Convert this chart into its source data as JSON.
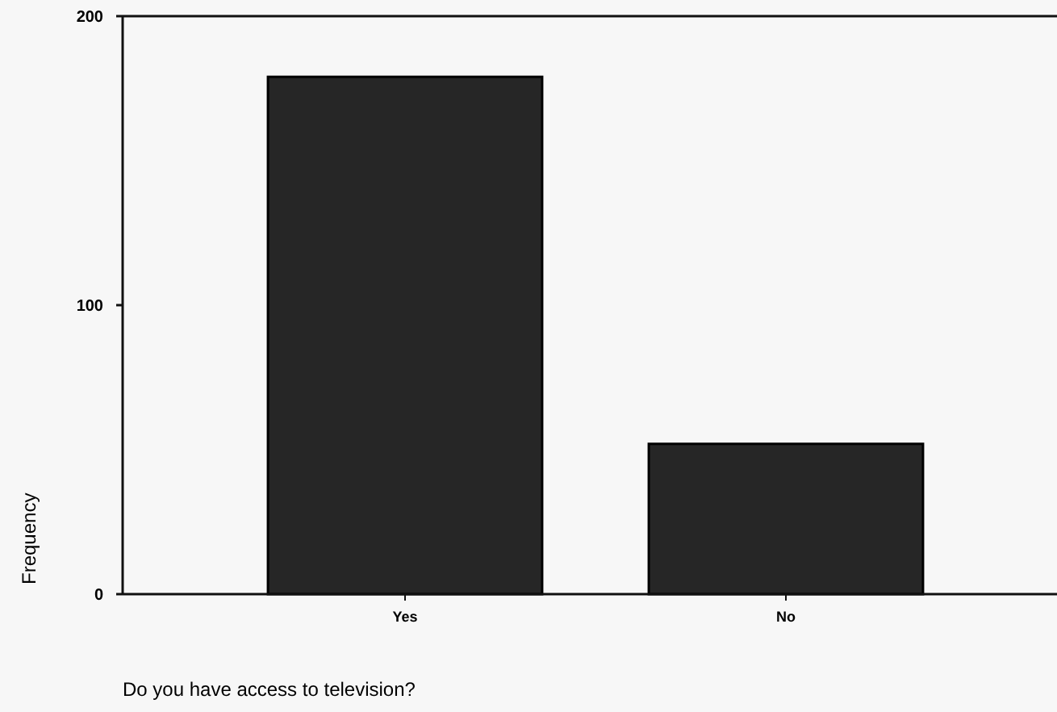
{
  "chart_data": {
    "type": "bar",
    "xlabel": "Do you have access to television?",
    "ylabel": "Frequency",
    "categories": [
      "Yes",
      "No"
    ],
    "values": [
      179,
      52
    ],
    "color": "#262626",
    "ylim": [
      0,
      200
    ],
    "yticks": [
      0,
      100,
      200
    ]
  }
}
